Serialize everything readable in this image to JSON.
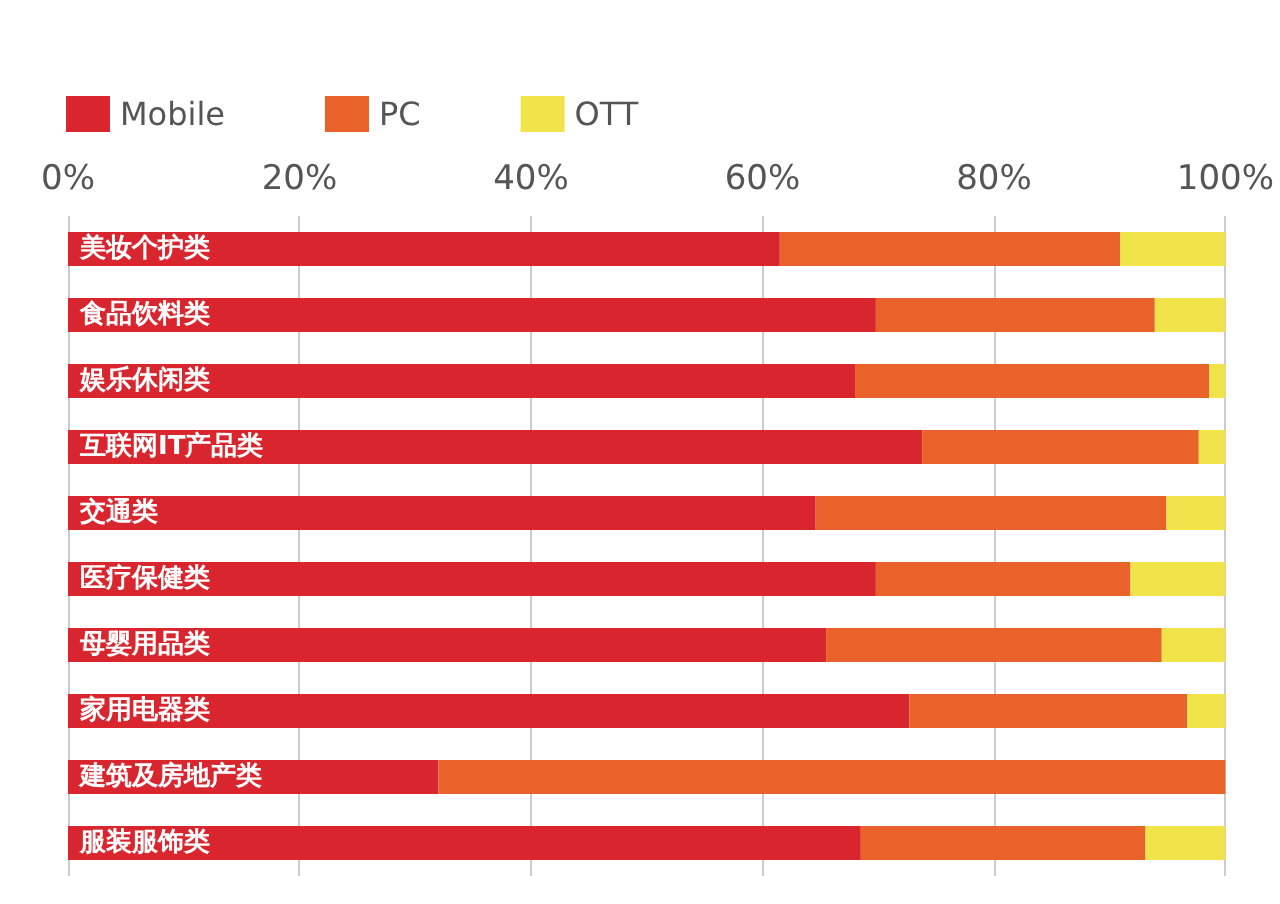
{
  "chart_data": {
    "type": "bar",
    "orientation": "horizontal",
    "stacked": true,
    "categories": [
      "美妆个护类",
      "食品饮料类",
      "娱乐休闲类",
      "互联网IT产品类",
      "交通类",
      "医疗保健类",
      "母婴用品类",
      "家用电器类",
      "建筑及房地产类",
      "服装服饰类"
    ],
    "series": [
      {
        "name": "Mobile",
        "color": "#d9262e",
        "values": [
          61.5,
          69.8,
          68.0,
          73.8,
          64.6,
          69.8,
          65.5,
          72.7,
          32.0,
          68.5
        ]
      },
      {
        "name": "PC",
        "color": "#e8622a",
        "values": [
          29.4,
          24.1,
          30.6,
          23.9,
          30.3,
          22.0,
          29.0,
          24.0,
          68.0,
          24.6
        ]
      },
      {
        "name": "OTT",
        "color": "#f0e44a",
        "values": [
          9.1,
          6.1,
          1.4,
          2.3,
          5.1,
          8.2,
          5.5,
          3.3,
          0,
          6.9
        ]
      }
    ],
    "xlim": [
      0,
      100
    ],
    "xticks": [
      {
        "value": 0,
        "label": "0%"
      },
      {
        "value": 20,
        "label": "20%"
      },
      {
        "value": 40,
        "label": "40%"
      },
      {
        "value": 60,
        "label": "60%"
      },
      {
        "value": 80,
        "label": "80%"
      },
      {
        "value": 100,
        "label": "100%"
      }
    ],
    "grid": "x",
    "legend": "top left"
  }
}
